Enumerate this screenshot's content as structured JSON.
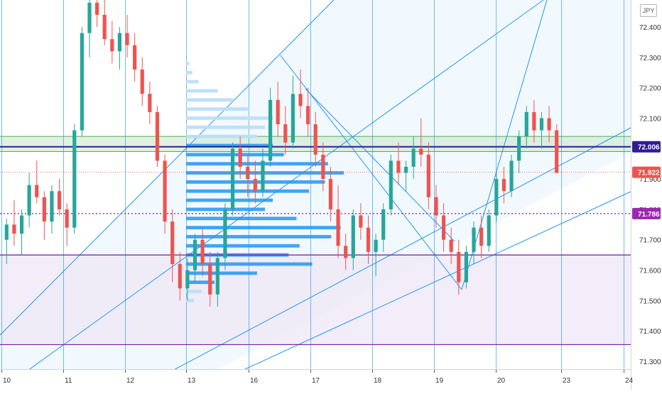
{
  "currency_badge": "JPY",
  "colors": {
    "up": "#26a69a",
    "down": "#ef5350",
    "channel": "#2196f3",
    "zone_green": "#4caf50",
    "line_navy": "#311b92",
    "line_purple": "#7b1fa2",
    "vp_bar": "#2196f3",
    "vp_bar_light": "#bbdefb",
    "zone_purple_fill": "#ede7f6"
  },
  "price_tags": [
    {
      "price": 72.006,
      "label": "72.006",
      "bg": "#311b92"
    },
    {
      "price": 71.922,
      "label": "71.922",
      "bg": "#ef5350"
    },
    {
      "price": 71.786,
      "label": "71.786",
      "bg": "#9c27b0"
    }
  ],
  "chart_data": {
    "type": "candlestick",
    "title": "",
    "xlabel": "",
    "ylabel": "",
    "x_ticks": [
      "10",
      "11",
      "12",
      "13",
      "16",
      "17",
      "18",
      "19",
      "20",
      "23",
      "24"
    ],
    "y_ticks": [
      "71.300",
      "71.400",
      "71.500",
      "71.600",
      "71.700",
      "71.800",
      "71.900",
      "72.000",
      "72.100",
      "72.200",
      "72.300",
      "72.400"
    ],
    "y_range": [
      71.28,
      72.48
    ],
    "grid": "vertical date lines",
    "horizontal_levels": [
      {
        "price": 72.006,
        "style": "solid",
        "color": "navy"
      },
      {
        "price": 71.922,
        "style": "dotted",
        "color": "red"
      },
      {
        "price": 71.786,
        "style": "dotted",
        "color": "purple"
      },
      {
        "price": 71.65,
        "style": "solid",
        "color": "purple"
      },
      {
        "price": 71.355,
        "style": "solid",
        "color": "purple"
      }
    ],
    "zones": [
      {
        "from": 71.99,
        "to": 72.04,
        "color": "green"
      },
      {
        "from": 71.355,
        "to": 71.65,
        "color": "purple"
      }
    ],
    "candles_ohlc": [
      [
        71.7,
        71.77,
        71.62,
        71.75
      ],
      [
        71.75,
        71.83,
        71.68,
        71.72
      ],
      [
        71.72,
        71.8,
        71.65,
        71.78
      ],
      [
        71.78,
        71.92,
        71.74,
        71.88
      ],
      [
        71.88,
        71.96,
        71.82,
        71.84
      ],
      [
        71.84,
        71.86,
        71.7,
        71.76
      ],
      [
        71.76,
        71.88,
        71.72,
        71.86
      ],
      [
        71.86,
        71.9,
        71.78,
        71.8
      ],
      [
        71.8,
        71.82,
        71.68,
        71.74
      ],
      [
        71.74,
        72.08,
        71.72,
        72.06
      ],
      [
        72.06,
        72.4,
        72.04,
        72.38
      ],
      [
        72.38,
        72.52,
        72.3,
        72.48
      ],
      [
        72.48,
        72.56,
        72.4,
        72.44
      ],
      [
        72.44,
        72.5,
        72.34,
        72.36
      ],
      [
        72.36,
        72.42,
        72.28,
        72.32
      ],
      [
        72.32,
        72.4,
        72.26,
        72.38
      ],
      [
        72.38,
        72.44,
        72.3,
        72.34
      ],
      [
        72.34,
        72.38,
        72.22,
        72.26
      ],
      [
        72.26,
        72.3,
        72.14,
        72.18
      ],
      [
        72.18,
        72.22,
        72.08,
        72.12
      ],
      [
        72.12,
        72.14,
        71.94,
        71.96
      ],
      [
        71.96,
        71.98,
        71.72,
        71.76
      ],
      [
        71.76,
        71.8,
        71.56,
        71.62
      ],
      [
        71.62,
        71.66,
        71.5,
        71.54
      ],
      [
        71.54,
        71.64,
        71.5,
        71.6
      ],
      [
        71.6,
        71.72,
        71.56,
        71.7
      ],
      [
        71.7,
        71.74,
        71.58,
        71.62
      ],
      [
        71.62,
        71.66,
        71.48,
        71.52
      ],
      [
        71.52,
        71.66,
        71.48,
        71.64
      ],
      [
        71.64,
        71.82,
        71.6,
        71.8
      ],
      [
        71.8,
        72.02,
        71.78,
        72.0
      ],
      [
        72.0,
        72.04,
        71.9,
        71.94
      ],
      [
        71.94,
        71.98,
        71.84,
        71.9
      ],
      [
        71.9,
        71.96,
        71.82,
        71.86
      ],
      [
        71.86,
        72.0,
        71.84,
        71.96
      ],
      [
        71.96,
        72.2,
        71.94,
        72.16
      ],
      [
        72.16,
        72.22,
        72.04,
        72.08
      ],
      [
        72.08,
        72.14,
        71.98,
        72.02
      ],
      [
        72.02,
        72.24,
        72.0,
        72.18
      ],
      [
        72.18,
        72.26,
        72.1,
        72.14
      ],
      [
        72.14,
        72.2,
        72.04,
        72.08
      ],
      [
        72.08,
        72.12,
        71.94,
        71.98
      ],
      [
        71.98,
        72.02,
        71.86,
        71.9
      ],
      [
        71.9,
        71.94,
        71.76,
        71.8
      ],
      [
        71.8,
        71.88,
        71.64,
        71.68
      ],
      [
        71.68,
        71.72,
        71.6,
        71.64
      ],
      [
        71.64,
        71.8,
        71.6,
        71.78
      ],
      [
        71.78,
        71.82,
        71.7,
        71.74
      ],
      [
        71.74,
        71.78,
        71.62,
        71.66
      ],
      [
        71.66,
        71.72,
        71.58,
        71.7
      ],
      [
        71.7,
        71.82,
        71.66,
        71.8
      ],
      [
        71.8,
        71.98,
        71.78,
        71.96
      ],
      [
        71.96,
        72.02,
        71.88,
        71.92
      ],
      [
        71.92,
        71.96,
        71.86,
        71.94
      ],
      [
        71.94,
        72.04,
        71.9,
        72.0
      ],
      [
        72.0,
        72.1,
        71.94,
        71.98
      ],
      [
        71.98,
        72.02,
        71.8,
        71.84
      ],
      [
        71.84,
        71.88,
        71.74,
        71.78
      ],
      [
        71.78,
        71.82,
        71.66,
        71.7
      ],
      [
        71.7,
        71.74,
        71.62,
        71.66
      ],
      [
        71.66,
        71.7,
        71.52,
        71.56
      ],
      [
        71.56,
        71.68,
        71.54,
        71.66
      ],
      [
        71.66,
        71.76,
        71.62,
        71.74
      ],
      [
        71.74,
        71.78,
        71.64,
        71.68
      ],
      [
        71.68,
        71.8,
        71.66,
        71.78
      ],
      [
        71.78,
        71.92,
        71.76,
        71.9
      ],
      [
        71.9,
        71.94,
        71.82,
        71.86
      ],
      [
        71.86,
        71.98,
        71.84,
        71.96
      ],
      [
        71.96,
        72.06,
        71.92,
        72.04
      ],
      [
        72.04,
        72.14,
        72.0,
        72.12
      ],
      [
        72.12,
        72.16,
        72.02,
        72.06
      ],
      [
        72.06,
        72.12,
        72.0,
        72.1
      ],
      [
        72.1,
        72.14,
        72.02,
        72.06
      ],
      [
        72.06,
        72.08,
        71.94,
        71.92
      ]
    ],
    "volume_profile": [
      {
        "price": 72.28,
        "size": 0.02
      },
      {
        "price": 72.25,
        "size": 0.04
      },
      {
        "price": 72.22,
        "size": 0.08
      },
      {
        "price": 72.19,
        "size": 0.2
      },
      {
        "price": 72.16,
        "size": 0.3
      },
      {
        "price": 72.13,
        "size": 0.4
      },
      {
        "price": 72.1,
        "size": 0.55
      },
      {
        "price": 72.07,
        "size": 0.5
      },
      {
        "price": 72.04,
        "size": 0.45
      },
      {
        "price": 72.01,
        "size": 0.55
      },
      {
        "price": 71.98,
        "size": 0.62
      },
      {
        "price": 71.95,
        "size": 0.9
      },
      {
        "price": 71.92,
        "size": 1.0
      },
      {
        "price": 71.89,
        "size": 0.88
      },
      {
        "price": 71.86,
        "size": 0.78
      },
      {
        "price": 71.83,
        "size": 0.55
      },
      {
        "price": 71.8,
        "size": 0.5
      },
      {
        "price": 71.77,
        "size": 0.7
      },
      {
        "price": 71.74,
        "size": 0.98
      },
      {
        "price": 71.71,
        "size": 0.92
      },
      {
        "price": 71.68,
        "size": 0.72
      },
      {
        "price": 71.65,
        "size": 0.65
      },
      {
        "price": 71.62,
        "size": 0.8
      },
      {
        "price": 71.59,
        "size": 0.45
      },
      {
        "price": 71.56,
        "size": 0.18
      },
      {
        "price": 71.53,
        "size": 0.1
      },
      {
        "price": 71.5,
        "size": 0.05
      }
    ]
  }
}
